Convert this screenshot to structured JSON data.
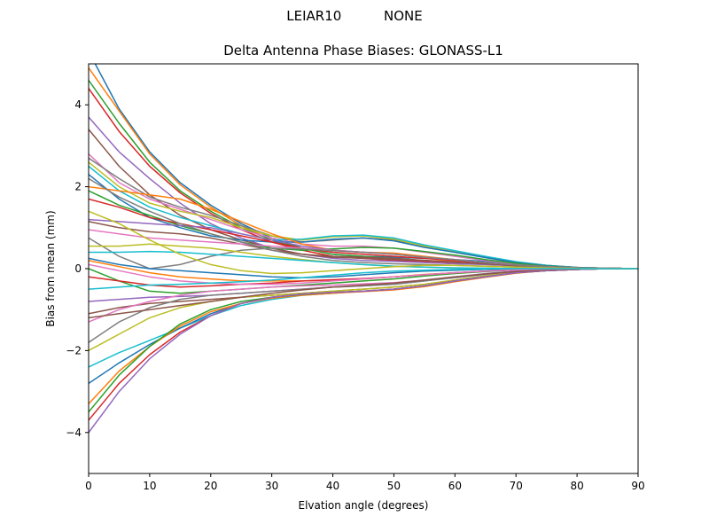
{
  "figure": {
    "suptitle": "LEIAR10          NONE"
  },
  "chart_data": {
    "type": "line",
    "title": "Delta Antenna Phase Biases: GLONASS-L1",
    "xlabel": "Elvation angle (degrees)",
    "ylabel": "Bias from mean (mm)",
    "xlim": [
      0,
      90
    ],
    "ylim": [
      -5,
      5
    ],
    "xticks": [
      0,
      10,
      20,
      30,
      40,
      50,
      60,
      70,
      80,
      90
    ],
    "yticks": [
      -4,
      -2,
      0,
      2,
      4
    ],
    "xtick_labels": [
      "0",
      "10",
      "20",
      "30",
      "40",
      "50",
      "60",
      "70",
      "80",
      "90"
    ],
    "ytick_labels": [
      "−4",
      "−2",
      "0",
      "2",
      "4"
    ],
    "grid": false,
    "legend": "none",
    "colors": [
      "#1f77b4",
      "#ff7f0e",
      "#2ca02c",
      "#d62728",
      "#9467bd",
      "#8c564b",
      "#e377c2",
      "#7f7f7f",
      "#bcbd22",
      "#17becf"
    ],
    "x": [
      0,
      5,
      10,
      15,
      20,
      25,
      30,
      35,
      40,
      45,
      50,
      55,
      60,
      65,
      70,
      75,
      80,
      85,
      90
    ],
    "series": [
      {
        "values": [
          5.3,
          3.9,
          2.85,
          2.1,
          1.55,
          1.1,
          0.75,
          0.5,
          0.35,
          0.3,
          0.28,
          0.25,
          0.22,
          0.18,
          0.12,
          0.07,
          0.03,
          0.01,
          0.0
        ]
      },
      {
        "values": [
          4.9,
          3.85,
          2.8,
          2.05,
          1.5,
          1.05,
          0.7,
          0.45,
          0.3,
          0.25,
          0.22,
          0.2,
          0.18,
          0.14,
          0.1,
          0.06,
          0.03,
          0.01,
          0.0
        ]
      },
      {
        "values": [
          4.6,
          3.55,
          2.6,
          1.9,
          1.4,
          1.0,
          0.7,
          0.5,
          0.35,
          0.3,
          0.25,
          0.2,
          0.15,
          0.12,
          0.08,
          0.05,
          0.02,
          0.01,
          0.0
        ]
      },
      {
        "values": [
          4.4,
          3.35,
          2.5,
          1.85,
          1.35,
          0.95,
          0.65,
          0.45,
          0.3,
          0.25,
          0.2,
          0.18,
          0.15,
          0.12,
          0.08,
          0.05,
          0.02,
          0.01,
          0.0
        ]
      },
      {
        "values": [
          3.7,
          2.85,
          2.2,
          1.6,
          1.1,
          0.75,
          0.5,
          0.35,
          0.25,
          0.2,
          0.18,
          0.15,
          0.12,
          0.1,
          0.07,
          0.04,
          0.02,
          0.01,
          0.0
        ]
      },
      {
        "values": [
          3.4,
          2.5,
          1.8,
          1.3,
          0.95,
          0.7,
          0.5,
          0.35,
          0.28,
          0.25,
          0.22,
          0.2,
          0.16,
          0.12,
          0.08,
          0.05,
          0.02,
          0.01,
          0.0
        ]
      },
      {
        "values": [
          2.8,
          2.1,
          1.7,
          1.45,
          1.2,
          0.95,
          0.75,
          0.6,
          0.55,
          0.55,
          0.5,
          0.4,
          0.3,
          0.2,
          0.12,
          0.06,
          0.03,
          0.01,
          0.0
        ]
      },
      {
        "values": [
          2.7,
          2.2,
          1.75,
          1.5,
          1.3,
          1.05,
          0.8,
          0.65,
          0.7,
          0.75,
          0.7,
          0.55,
          0.4,
          0.27,
          0.16,
          0.08,
          0.03,
          0.01,
          0.0
        ]
      },
      {
        "values": [
          2.6,
          2.0,
          1.6,
          1.4,
          1.25,
          1.0,
          0.8,
          0.7,
          0.78,
          0.8,
          0.72,
          0.55,
          0.42,
          0.28,
          0.16,
          0.08,
          0.03,
          0.01,
          0.0
        ]
      },
      {
        "values": [
          2.5,
          1.9,
          1.5,
          1.25,
          1.05,
          0.85,
          0.7,
          0.72,
          0.8,
          0.82,
          0.75,
          0.58,
          0.44,
          0.3,
          0.17,
          0.08,
          0.03,
          0.01,
          0.0
        ]
      },
      {
        "values": [
          2.3,
          1.7,
          1.25,
          1.0,
          0.8,
          0.7,
          0.65,
          0.65,
          0.72,
          0.75,
          0.68,
          0.52,
          0.4,
          0.27,
          0.15,
          0.07,
          0.03,
          0.01,
          0.0
        ]
      },
      {
        "values": [
          2.0,
          1.9,
          1.8,
          1.7,
          1.45,
          1.15,
          0.85,
          0.6,
          0.45,
          0.4,
          0.38,
          0.3,
          0.22,
          0.15,
          0.09,
          0.05,
          0.02,
          0.01,
          0.0
        ]
      },
      {
        "values": [
          1.9,
          1.55,
          1.3,
          1.05,
          0.85,
          0.65,
          0.5,
          0.45,
          0.48,
          0.52,
          0.5,
          0.42,
          0.33,
          0.22,
          0.13,
          0.06,
          0.02,
          0.01,
          0.0
        ]
      },
      {
        "values": [
          1.7,
          1.5,
          1.25,
          1.1,
          0.95,
          0.8,
          0.65,
          0.5,
          0.4,
          0.35,
          0.3,
          0.25,
          0.2,
          0.14,
          0.09,
          0.05,
          0.02,
          0.01,
          0.0
        ]
      },
      {
        "values": [
          1.2,
          1.15,
          1.1,
          1.05,
          1.0,
          0.85,
          0.7,
          0.55,
          0.45,
          0.4,
          0.35,
          0.28,
          0.22,
          0.15,
          0.09,
          0.05,
          0.02,
          0.01,
          0.0
        ]
      },
      {
        "values": [
          1.15,
          1.0,
          0.9,
          0.85,
          0.75,
          0.6,
          0.45,
          0.35,
          0.3,
          0.28,
          0.25,
          0.2,
          0.16,
          0.12,
          0.07,
          0.04,
          0.02,
          0.01,
          0.0
        ]
      },
      {
        "values": [
          0.95,
          0.85,
          0.75,
          0.7,
          0.65,
          0.6,
          0.55,
          0.5,
          0.45,
          0.4,
          0.35,
          0.28,
          0.22,
          0.15,
          0.09,
          0.05,
          0.02,
          0.01,
          0.0
        ]
      },
      {
        "values": [
          0.75,
          0.3,
          0.0,
          0.1,
          0.3,
          0.45,
          0.5,
          0.48,
          0.44,
          0.4,
          0.35,
          0.28,
          0.22,
          0.15,
          0.09,
          0.05,
          0.02,
          0.01,
          0.0
        ]
      },
      {
        "values": [
          0.55,
          0.55,
          0.6,
          0.55,
          0.5,
          0.4,
          0.3,
          0.22,
          0.15,
          0.1,
          0.06,
          0.04,
          0.02,
          0.01,
          0.0,
          0.0,
          0.0,
          0.0,
          0.0
        ]
      },
      {
        "values": [
          0.4,
          0.4,
          0.42,
          0.4,
          0.35,
          0.3,
          0.25,
          0.2,
          0.15,
          0.1,
          0.06,
          0.04,
          0.02,
          0.01,
          0.0,
          0.0,
          0.0,
          0.0,
          0.0
        ]
      },
      {
        "values": [
          0.25,
          0.1,
          0.0,
          -0.05,
          -0.1,
          -0.15,
          -0.2,
          -0.22,
          -0.2,
          -0.15,
          -0.1,
          -0.06,
          -0.04,
          -0.02,
          -0.01,
          0.0,
          0.0,
          0.0,
          0.0
        ]
      },
      {
        "values": [
          0.2,
          0.05,
          -0.1,
          -0.2,
          -0.25,
          -0.3,
          -0.3,
          -0.3,
          -0.28,
          -0.25,
          -0.2,
          -0.14,
          -0.1,
          -0.06,
          -0.03,
          -0.01,
          0.0,
          0.0,
          0.0
        ]
      },
      {
        "values": [
          0.0,
          -0.3,
          -0.55,
          -0.6,
          -0.55,
          -0.5,
          -0.45,
          -0.4,
          -0.35,
          -0.3,
          -0.25,
          -0.18,
          -0.12,
          -0.07,
          -0.03,
          -0.01,
          0.0,
          0.0,
          0.0
        ]
      },
      {
        "values": [
          -0.2,
          -0.3,
          -0.4,
          -0.45,
          -0.42,
          -0.38,
          -0.35,
          -0.3,
          -0.27,
          -0.24,
          -0.2,
          -0.15,
          -0.1,
          -0.06,
          -0.03,
          -0.01,
          0.0,
          0.0,
          0.0
        ]
      },
      {
        "values": [
          -0.8,
          -0.75,
          -0.7,
          -0.68,
          -0.65,
          -0.6,
          -0.55,
          -0.5,
          -0.45,
          -0.42,
          -0.38,
          -0.3,
          -0.2,
          -0.12,
          -0.06,
          -0.03,
          -0.01,
          0.0,
          0.0
        ]
      },
      {
        "values": [
          -1.1,
          -0.95,
          -0.85,
          -0.8,
          -0.75,
          -0.7,
          -0.65,
          -0.6,
          -0.55,
          -0.5,
          -0.45,
          -0.38,
          -0.28,
          -0.18,
          -0.09,
          -0.04,
          -0.01,
          0.0,
          0.0
        ]
      },
      {
        "values": [
          -1.3,
          -1.0,
          -0.8,
          -0.65,
          -0.55,
          -0.5,
          -0.45,
          -0.42,
          -0.4,
          -0.37,
          -0.34,
          -0.28,
          -0.2,
          -0.13,
          -0.07,
          -0.03,
          -0.01,
          0.0,
          0.0
        ]
      },
      {
        "values": [
          -1.8,
          -1.3,
          -0.95,
          -0.75,
          -0.65,
          -0.6,
          -0.55,
          -0.5,
          -0.45,
          -0.42,
          -0.38,
          -0.3,
          -0.22,
          -0.14,
          -0.07,
          -0.03,
          -0.01,
          0.0,
          0.0
        ]
      },
      {
        "values": [
          -2.0,
          -1.6,
          -1.2,
          -0.95,
          -0.8,
          -0.7,
          -0.65,
          -0.6,
          -0.55,
          -0.5,
          -0.45,
          -0.38,
          -0.28,
          -0.18,
          -0.09,
          -0.04,
          -0.01,
          0.0,
          0.0
        ]
      },
      {
        "values": [
          -2.4,
          -2.05,
          -1.75,
          -1.45,
          -1.15,
          -0.9,
          -0.75,
          -0.65,
          -0.6,
          -0.55,
          -0.5,
          -0.42,
          -0.3,
          -0.2,
          -0.1,
          -0.05,
          -0.02,
          0.0,
          0.0
        ]
      },
      {
        "values": [
          -2.8,
          -2.3,
          -1.85,
          -1.45,
          -1.1,
          -0.85,
          -0.7,
          -0.62,
          -0.58,
          -0.55,
          -0.5,
          -0.42,
          -0.3,
          -0.2,
          -0.1,
          -0.05,
          -0.02,
          0.0,
          0.0
        ]
      },
      {
        "values": [
          -3.3,
          -2.5,
          -1.9,
          -1.4,
          -1.05,
          -0.85,
          -0.72,
          -0.65,
          -0.6,
          -0.56,
          -0.52,
          -0.44,
          -0.32,
          -0.21,
          -0.11,
          -0.05,
          -0.02,
          0.0,
          0.0
        ]
      },
      {
        "values": [
          -3.5,
          -2.6,
          -1.9,
          -1.35,
          -1.0,
          -0.8,
          -0.7,
          -0.63,
          -0.58,
          -0.55,
          -0.5,
          -0.42,
          -0.3,
          -0.2,
          -0.1,
          -0.05,
          -0.02,
          0.0,
          0.0
        ]
      },
      {
        "values": [
          -3.7,
          -2.8,
          -2.1,
          -1.55,
          -1.15,
          -0.85,
          -0.7,
          -0.62,
          -0.58,
          -0.55,
          -0.5,
          -0.42,
          -0.3,
          -0.2,
          -0.1,
          -0.05,
          -0.02,
          0.0,
          0.0
        ]
      },
      {
        "values": [
          -4.0,
          -3.0,
          -2.2,
          -1.6,
          -1.15,
          -0.85,
          -0.7,
          -0.62,
          -0.58,
          -0.55,
          -0.5,
          -0.42,
          -0.3,
          -0.2,
          -0.1,
          -0.05,
          -0.02,
          0.0,
          0.0
        ]
      },
      {
        "values": [
          -1.2,
          -1.1,
          -1.0,
          -0.9,
          -0.8,
          -0.7,
          -0.6,
          -0.52,
          -0.45,
          -0.4,
          -0.35,
          -0.28,
          -0.2,
          -0.13,
          -0.07,
          -0.03,
          -0.01,
          0.0,
          0.0
        ]
      },
      {
        "values": [
          0.1,
          -0.05,
          -0.2,
          -0.3,
          -0.35,
          -0.38,
          -0.38,
          -0.35,
          -0.3,
          -0.25,
          -0.2,
          -0.15,
          -0.1,
          -0.06,
          -0.03,
          -0.01,
          0.0,
          0.0,
          0.0
        ]
      },
      {
        "values": [
          2.2,
          1.75,
          1.4,
          1.1,
          0.85,
          0.65,
          0.45,
          0.3,
          0.2,
          0.15,
          0.12,
          0.1,
          0.08,
          0.06,
          0.04,
          0.02,
          0.01,
          0.0,
          0.0
        ]
      },
      {
        "values": [
          1.4,
          1.1,
          0.7,
          0.35,
          0.1,
          -0.05,
          -0.12,
          -0.1,
          -0.05,
          0.0,
          0.05,
          0.08,
          0.08,
          0.06,
          0.04,
          0.02,
          0.01,
          0.0,
          0.0
        ]
      },
      {
        "values": [
          -0.5,
          -0.45,
          -0.4,
          -0.38,
          -0.35,
          -0.32,
          -0.28,
          -0.22,
          -0.16,
          -0.1,
          -0.06,
          -0.04,
          -0.02,
          -0.01,
          0.0,
          0.0,
          0.0,
          0.0,
          0.0
        ]
      }
    ]
  }
}
